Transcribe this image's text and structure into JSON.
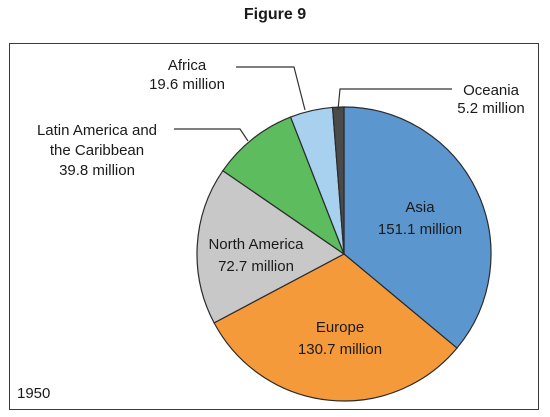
{
  "figure": {
    "title": "Figure 9",
    "year": "1950"
  },
  "chart_data": {
    "type": "pie",
    "title": "Figure 9",
    "unit": "million",
    "slices": [
      {
        "name": "Asia",
        "value": 151.1,
        "value_label": "151.1 million",
        "color": "#5b97ce"
      },
      {
        "name": "Europe",
        "value": 130.7,
        "value_label": "130.7 million",
        "color": "#f59a3b"
      },
      {
        "name": "North America",
        "value": 72.7,
        "value_label": "72.7 million",
        "color": "#c8c8c8"
      },
      {
        "name": "Latin America and the Caribbean",
        "name_lines": [
          "Latin America and",
          "the Caribbean"
        ],
        "value": 39.8,
        "value_label": "39.8 million",
        "color": "#5cbc5e"
      },
      {
        "name": "Africa",
        "value": 19.6,
        "value_label": "19.6 million",
        "color": "#a8d1f0"
      },
      {
        "name": "Oceania",
        "value": 5.2,
        "value_label": "5.2 million",
        "color": "#4a4a4a"
      }
    ],
    "annotation": "1950"
  }
}
